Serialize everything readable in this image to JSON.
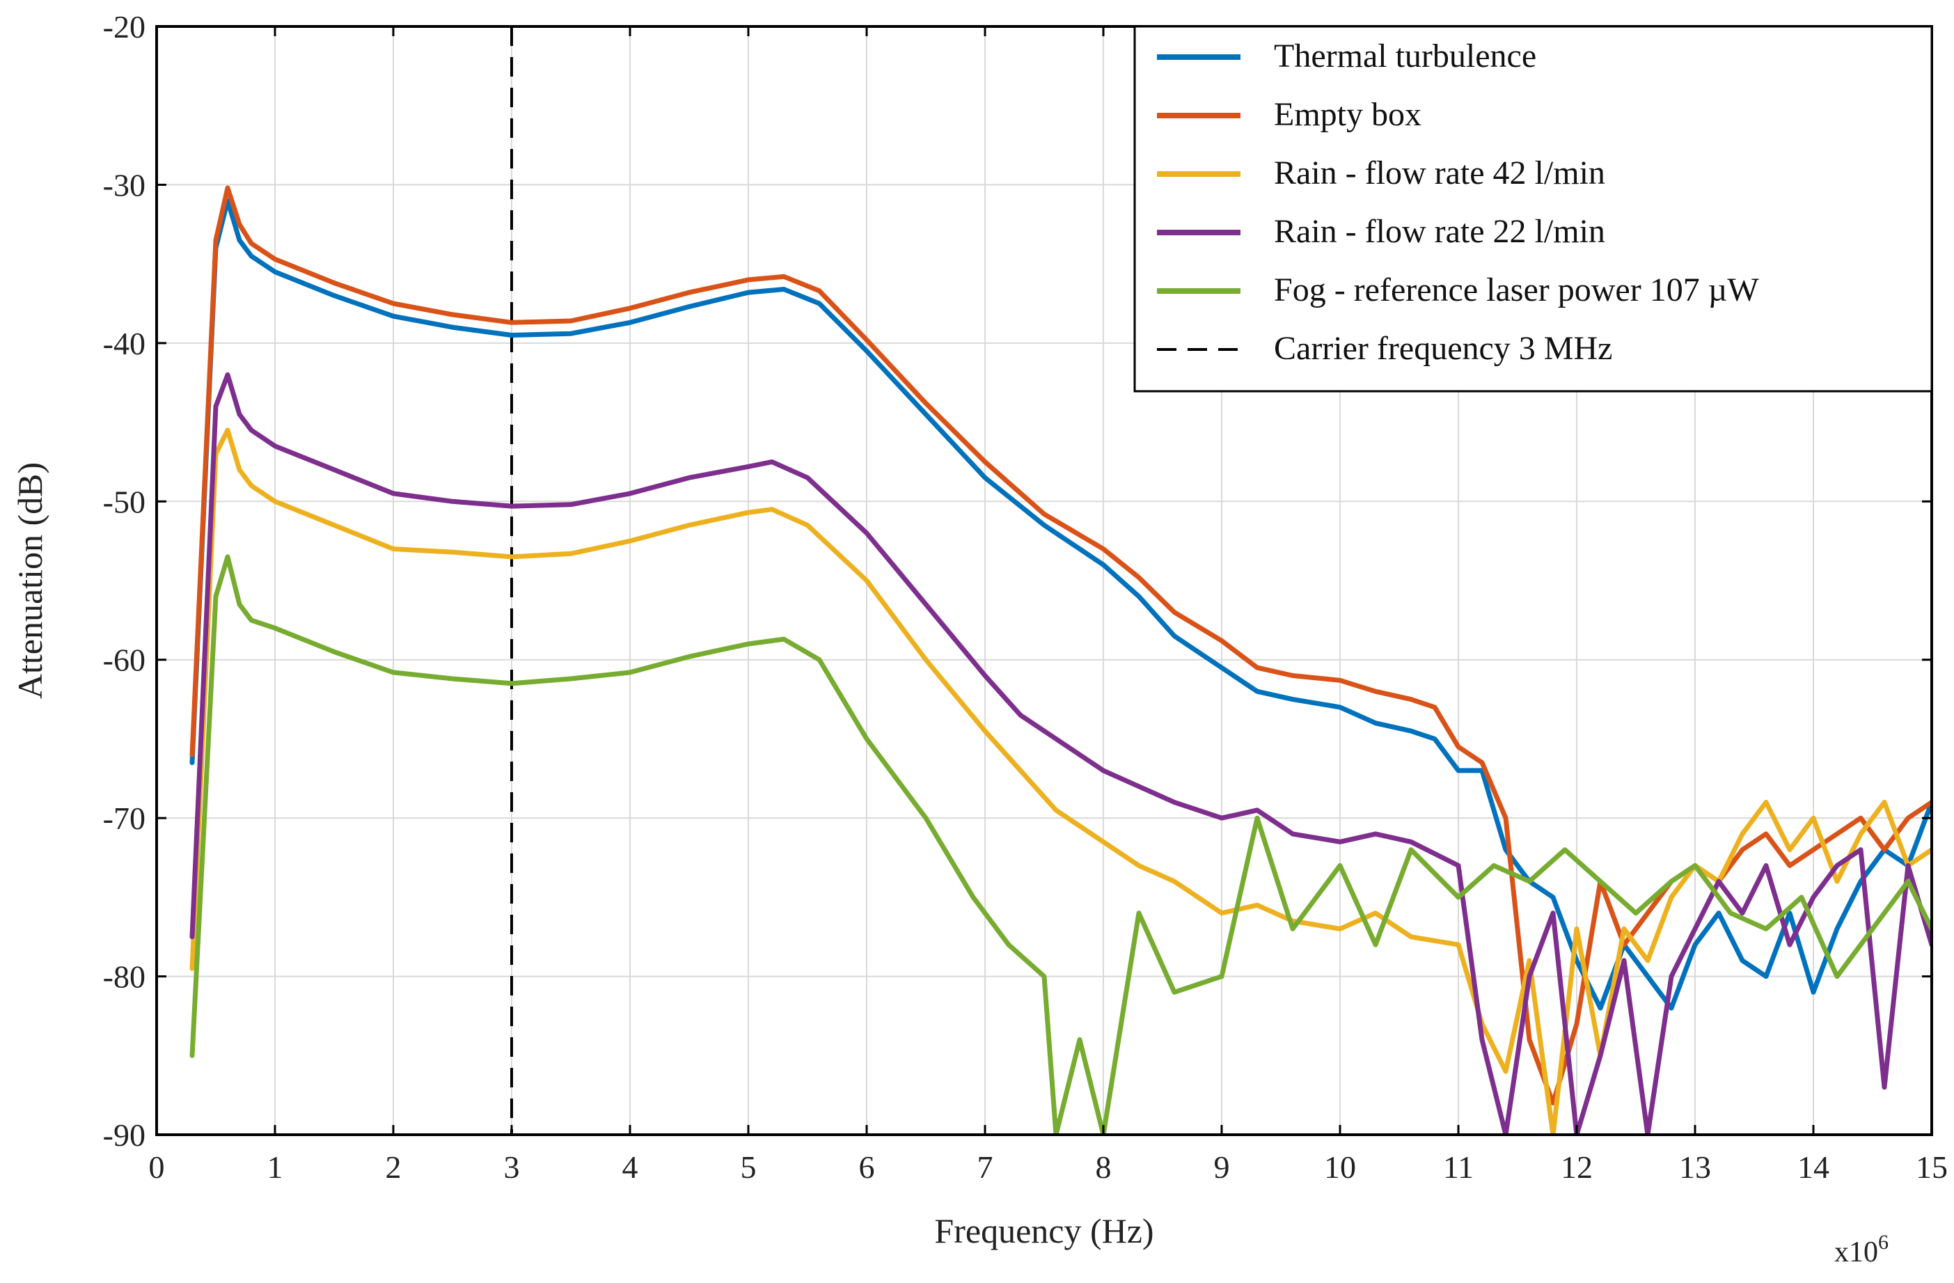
{
  "chart_data": {
    "type": "line",
    "title": "",
    "xlabel": "Frequency (Hz)",
    "ylabel": "Attenuation (dB)",
    "x_multiplier_label": "x10",
    "x_multiplier_exponent": "6",
    "xlim": [
      0,
      15
    ],
    "ylim": [
      -90,
      -20
    ],
    "xticks": [
      "0",
      "1",
      "2",
      "3",
      "4",
      "5",
      "6",
      "7",
      "8",
      "9",
      "10",
      "11",
      "12",
      "13",
      "14",
      "15"
    ],
    "yticks": [
      "-20",
      "-30",
      "-40",
      "-50",
      "-60",
      "-70",
      "-80",
      "-90"
    ],
    "grid": true,
    "legend_position": "top-right",
    "carrier_frequency": 3,
    "series": [
      {
        "name": "Thermal turbulence",
        "color": "#0072BD",
        "x": [
          0.3,
          0.5,
          0.6,
          0.7,
          0.8,
          1.0,
          1.5,
          2.0,
          2.5,
          3.0,
          3.5,
          4.0,
          4.5,
          5.0,
          5.3,
          5.6,
          6.0,
          6.5,
          7.0,
          7.5,
          8.0,
          8.3,
          8.6,
          9.0,
          9.3,
          9.6,
          10.0,
          10.3,
          10.6,
          10.8,
          11.0,
          11.2,
          11.4,
          11.6,
          11.8,
          12.0,
          12.2,
          12.4,
          12.6,
          12.8,
          13.0,
          13.2,
          13.4,
          13.6,
          13.8,
          14.0,
          14.2,
          14.4,
          14.6,
          14.8,
          15.0
        ],
        "y": [
          -66.5,
          -34,
          -31,
          -33.5,
          -34.5,
          -35.5,
          -37,
          -38.3,
          -39,
          -39.5,
          -39.4,
          -38.7,
          -37.7,
          -36.8,
          -36.6,
          -37.5,
          -40.5,
          -44.5,
          -48.5,
          -51.5,
          -54,
          -56,
          -58.5,
          -60.5,
          -62,
          -62.5,
          -63,
          -64,
          -64.5,
          -65,
          -67,
          -67,
          -72,
          -74,
          -75,
          -79,
          -82,
          -78,
          -80,
          -82,
          -78,
          -76,
          -79,
          -80,
          -76,
          -81,
          -77,
          -74,
          -72,
          -73,
          -69
        ]
      },
      {
        "name": "Empty box",
        "color": "#D95319",
        "x": [
          0.3,
          0.5,
          0.6,
          0.7,
          0.8,
          1.0,
          1.5,
          2.0,
          2.5,
          3.0,
          3.5,
          4.0,
          4.5,
          5.0,
          5.3,
          5.6,
          6.0,
          6.5,
          7.0,
          7.5,
          8.0,
          8.3,
          8.6,
          9.0,
          9.3,
          9.6,
          10.0,
          10.3,
          10.6,
          10.8,
          11.0,
          11.2,
          11.4,
          11.6,
          11.8,
          12.0,
          12.2,
          12.4,
          12.6,
          12.8,
          13.0,
          13.2,
          13.4,
          13.6,
          13.8,
          14.0,
          14.2,
          14.4,
          14.6,
          14.8,
          15.0
        ],
        "y": [
          -66,
          -33.5,
          -30.2,
          -32.5,
          -33.7,
          -34.7,
          -36.2,
          -37.5,
          -38.2,
          -38.7,
          -38.6,
          -37.8,
          -36.8,
          -36.0,
          -35.8,
          -36.7,
          -39.8,
          -43.8,
          -47.5,
          -50.8,
          -53,
          -54.8,
          -57,
          -58.8,
          -60.5,
          -61,
          -61.3,
          -62,
          -62.5,
          -63,
          -65.5,
          -66.5,
          -70,
          -84,
          -88,
          -83,
          -74,
          -78,
          -76,
          -74,
          -73,
          -74,
          -72,
          -71,
          -73,
          -72,
          -71,
          -70,
          -72,
          -70,
          -69
        ]
      },
      {
        "name": "Rain - flow rate 42 l/min",
        "color": "#EDB120",
        "x": [
          0.3,
          0.5,
          0.6,
          0.7,
          0.8,
          1.0,
          1.5,
          2.0,
          2.5,
          3.0,
          3.5,
          4.0,
          4.5,
          5.0,
          5.2,
          5.5,
          6.0,
          6.5,
          7.0,
          7.3,
          7.6,
          8.0,
          8.3,
          8.6,
          9.0,
          9.3,
          9.6,
          10.0,
          10.3,
          10.6,
          11.0,
          11.2,
          11.4,
          11.6,
          11.8,
          12.0,
          12.2,
          12.4,
          12.6,
          12.8,
          13.0,
          13.2,
          13.4,
          13.6,
          13.8,
          14.0,
          14.2,
          14.4,
          14.6,
          14.8,
          15.0
        ],
        "y": [
          -79.5,
          -47,
          -45.5,
          -48,
          -49,
          -50,
          -51.5,
          -53,
          -53.2,
          -53.5,
          -53.3,
          -52.5,
          -51.5,
          -50.7,
          -50.5,
          -51.5,
          -55,
          -60,
          -64.5,
          -67,
          -69.5,
          -71.5,
          -73,
          -74,
          -76,
          -75.5,
          -76.5,
          -77,
          -76,
          -77.5,
          -78,
          -83,
          -86,
          -79,
          -90,
          -77,
          -85,
          -77,
          -79,
          -75,
          -73,
          -74,
          -71,
          -69,
          -72,
          -70,
          -74,
          -71,
          -69,
          -73,
          -72
        ]
      },
      {
        "name": "Rain - flow rate 22 l/min",
        "color": "#7E2F8E",
        "x": [
          0.3,
          0.5,
          0.6,
          0.7,
          0.8,
          1.0,
          1.5,
          2.0,
          2.5,
          3.0,
          3.5,
          4.0,
          4.5,
          5.0,
          5.2,
          5.5,
          6.0,
          6.5,
          7.0,
          7.3,
          7.6,
          8.0,
          8.3,
          8.6,
          9.0,
          9.3,
          9.6,
          10.0,
          10.3,
          10.6,
          11.0,
          11.2,
          11.4,
          11.6,
          11.8,
          12.0,
          12.2,
          12.4,
          12.6,
          12.8,
          13.0,
          13.2,
          13.4,
          13.6,
          13.8,
          14.0,
          14.2,
          14.4,
          14.6,
          14.8,
          15.0
        ],
        "y": [
          -77.5,
          -44,
          -42,
          -44.5,
          -45.5,
          -46.5,
          -48,
          -49.5,
          -50,
          -50.3,
          -50.2,
          -49.5,
          -48.5,
          -47.8,
          -47.5,
          -48.5,
          -52,
          -56.5,
          -61,
          -63.5,
          -65,
          -67,
          -68,
          -69,
          -70,
          -69.5,
          -71,
          -71.5,
          -71,
          -71.5,
          -73,
          -84,
          -90,
          -80,
          -76,
          -90,
          -85,
          -79,
          -90,
          -80,
          -77,
          -74,
          -76,
          -73,
          -78,
          -75,
          -73,
          -72,
          -87,
          -73,
          -78
        ]
      },
      {
        "name": "Fog - reference laser power 107 µW",
        "color": "#77AC30",
        "x": [
          0.3,
          0.5,
          0.6,
          0.7,
          0.8,
          1.0,
          1.5,
          2.0,
          2.5,
          3.0,
          3.5,
          4.0,
          4.5,
          5.0,
          5.3,
          5.6,
          6.0,
          6.5,
          6.9,
          7.2,
          7.5,
          7.6,
          7.8,
          8.0,
          8.3,
          8.6,
          9.0,
          9.3,
          9.6,
          10.0,
          10.3,
          10.6,
          11.0,
          11.3,
          11.6,
          11.9,
          12.2,
          12.5,
          12.8,
          13.0,
          13.3,
          13.6,
          13.9,
          14.2,
          14.5,
          14.8,
          15.0
        ],
        "y": [
          -85,
          -56,
          -53.5,
          -56.5,
          -57.5,
          -58,
          -59.5,
          -60.8,
          -61.2,
          -61.5,
          -61.2,
          -60.8,
          -59.8,
          -59,
          -58.7,
          -60,
          -65,
          -70,
          -75,
          -78,
          -80,
          -90,
          -84,
          -90,
          -76,
          -81,
          -80,
          -70,
          -77,
          -73,
          -78,
          -72,
          -75,
          -73,
          -74,
          -72,
          -74,
          -76,
          -74,
          -73,
          -76,
          -77,
          -75,
          -80,
          -77,
          -74,
          -77
        ]
      }
    ]
  }
}
